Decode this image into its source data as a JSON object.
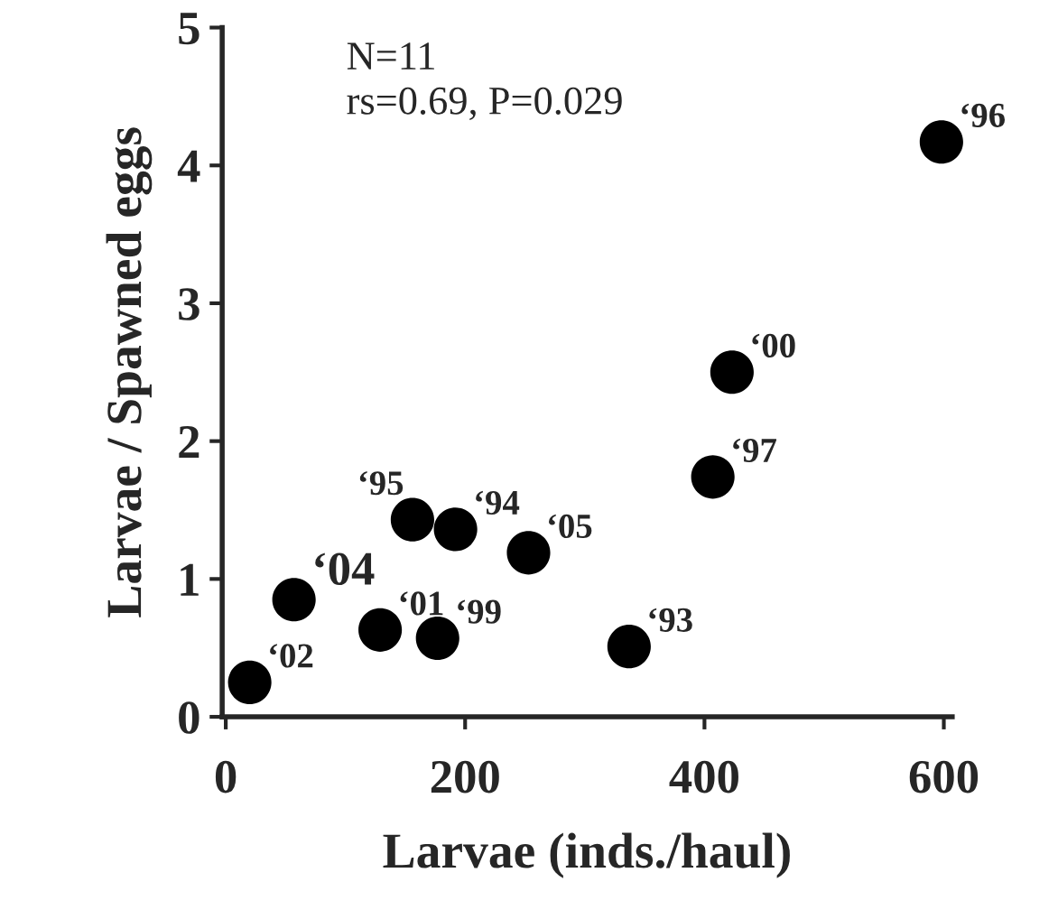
{
  "chart_data": {
    "type": "scatter",
    "xlabel": "Larvae (inds./haul)",
    "ylabel": "Larvae / Spawned eggs",
    "x": [
      20,
      57,
      129,
      177,
      156,
      192,
      253,
      337,
      407,
      423,
      598
    ],
    "values": [
      0.25,
      0.85,
      0.63,
      0.57,
      1.43,
      1.36,
      1.19,
      0.51,
      1.74,
      2.5,
      4.17
    ],
    "color": "#000000",
    "marker": "circle",
    "xlim": [
      -3,
      607
    ],
    "ylim": [
      0,
      5
    ],
    "xticks": [
      0,
      200,
      400,
      600
    ],
    "yticks": [
      0,
      1,
      2,
      3,
      4,
      5
    ],
    "grid": false,
    "annotations": [
      "N=11",
      "rs=0.69, P=0.029",
      {
        "text": "‘02",
        "x": 20,
        "y": 0.25
      },
      {
        "text": "‘04",
        "x": 57,
        "y": 0.85
      },
      {
        "text": "‘01",
        "x": 129,
        "y": 0.63
      },
      {
        "text": "‘99",
        "x": 177,
        "y": 0.57
      },
      {
        "text": "‘95",
        "x": 156,
        "y": 1.43
      },
      {
        "text": "‘94",
        "x": 192,
        "y": 1.36
      },
      {
        "text": "‘05",
        "x": 253,
        "y": 1.19
      },
      {
        "text": "‘93",
        "x": 337,
        "y": 0.51
      },
      {
        "text": "‘97",
        "x": 407,
        "y": 1.74
      },
      {
        "text": "‘00",
        "x": 423,
        "y": 2.5
      },
      {
        "text": "‘96",
        "x": 598,
        "y": 4.17
      }
    ]
  }
}
